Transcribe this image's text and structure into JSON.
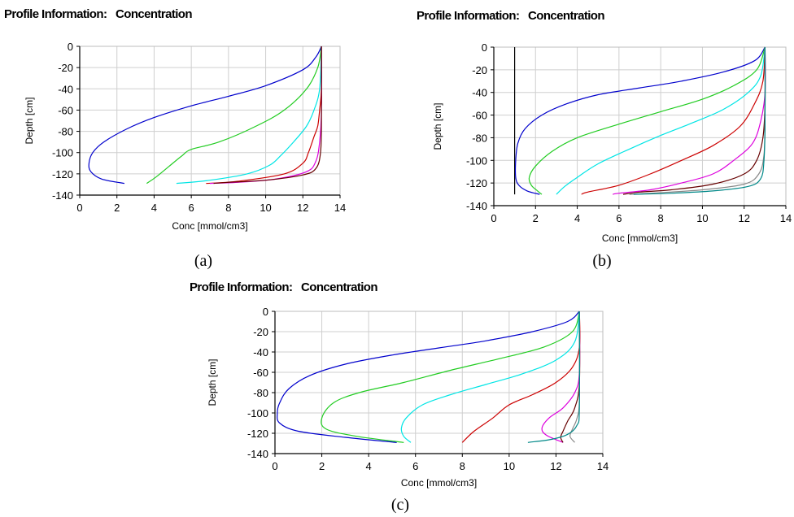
{
  "chart_data": [
    {
      "id": "a",
      "type": "line",
      "title": "Profile Information:   Concentration",
      "xlabel": "Conc [mmol/cm3]",
      "ylabel": "Depth [cm]",
      "caption": "(a)",
      "xlim": [
        0,
        14
      ],
      "ylim": [
        -140,
        0
      ],
      "xticks": [
        0,
        2,
        4,
        6,
        8,
        10,
        12,
        14
      ],
      "yticks": [
        0,
        -20,
        -40,
        -60,
        -80,
        -100,
        -120,
        -140
      ],
      "grid": true,
      "series": [
        {
          "color": "#0000cc",
          "points": [
            [
              13,
              0
            ],
            [
              12.7,
              -10
            ],
            [
              12,
              -22
            ],
            [
              10,
              -37
            ],
            [
              8,
              -47
            ],
            [
              6,
              -56
            ],
            [
              4,
              -67
            ],
            [
              2.5,
              -78
            ],
            [
              1.3,
              -90
            ],
            [
              0.7,
              -100
            ],
            [
              0.5,
              -110
            ],
            [
              0.6,
              -118
            ],
            [
              1.2,
              -125
            ],
            [
              2.4,
              -129
            ]
          ]
        },
        {
          "color": "#22cc22",
          "points": [
            [
              13,
              0
            ],
            [
              12.8,
              -20
            ],
            [
              12.2,
              -40
            ],
            [
              11,
              -60
            ],
            [
              9.5,
              -75
            ],
            [
              7.5,
              -90
            ],
            [
              6,
              -97
            ],
            [
              5.5,
              -103
            ],
            [
              4.8,
              -113
            ],
            [
              4.1,
              -123
            ],
            [
              3.6,
              -129
            ]
          ]
        },
        {
          "color": "#00e5e5",
          "points": [
            [
              13,
              0
            ],
            [
              12.9,
              -40
            ],
            [
              12.6,
              -60
            ],
            [
              12.2,
              -75
            ],
            [
              11.5,
              -90
            ],
            [
              10.8,
              -103
            ],
            [
              10.2,
              -112
            ],
            [
              9,
              -120
            ],
            [
              7,
              -126
            ],
            [
              5.2,
              -129
            ]
          ]
        },
        {
          "color": "#cc0000",
          "points": [
            [
              13,
              0
            ],
            [
              13,
              -40
            ],
            [
              12.9,
              -60
            ],
            [
              12.8,
              -75
            ],
            [
              12.6,
              -85
            ],
            [
              12.3,
              -100
            ],
            [
              12,
              -110
            ],
            [
              11,
              -120
            ],
            [
              8.5,
              -127
            ],
            [
              6.8,
              -129
            ]
          ]
        },
        {
          "color": "#dd00dd",
          "points": [
            [
              13,
              0
            ],
            [
              13,
              -60
            ],
            [
              12.9,
              -90
            ],
            [
              12.7,
              -108
            ],
            [
              12.2,
              -118
            ],
            [
              10.5,
              -125
            ],
            [
              8.5,
              -128
            ],
            [
              7,
              -129
            ]
          ]
        },
        {
          "color": "#660000",
          "points": [
            [
              13,
              0
            ],
            [
              13,
              -70
            ],
            [
              12.95,
              -100
            ],
            [
              12.7,
              -115
            ],
            [
              12,
              -121
            ],
            [
              10,
              -126
            ],
            [
              8,
              -128
            ],
            [
              7.2,
              -129
            ]
          ]
        }
      ]
    },
    {
      "id": "b",
      "type": "line",
      "title": "Profile Information:   Concentration",
      "xlabel": "Conc [mmol/cm3]",
      "ylabel": "Depth [cm]",
      "caption": "(b)",
      "xlim": [
        0,
        14
      ],
      "ylim": [
        -140,
        0
      ],
      "xticks": [
        0,
        2,
        4,
        6,
        8,
        10,
        12,
        14
      ],
      "yticks": [
        0,
        -20,
        -40,
        -60,
        -80,
        -100,
        -120,
        -140
      ],
      "grid": true,
      "series": [
        {
          "color": "#000000",
          "points": [
            [
              1,
              0
            ],
            [
              1,
              -130
            ]
          ]
        },
        {
          "color": "#0000cc",
          "points": [
            [
              13,
              0
            ],
            [
              12.5,
              -12
            ],
            [
              11,
              -22
            ],
            [
              9,
              -30
            ],
            [
              7,
              -36
            ],
            [
              5,
              -42
            ],
            [
              3.5,
              -50
            ],
            [
              2.3,
              -60
            ],
            [
              1.5,
              -72
            ],
            [
              1.15,
              -85
            ],
            [
              1.05,
              -100
            ],
            [
              1.05,
              -115
            ],
            [
              1.2,
              -122
            ],
            [
              1.6,
              -127
            ],
            [
              2.2,
              -130
            ]
          ]
        },
        {
          "color": "#22cc22",
          "points": [
            [
              13,
              0
            ],
            [
              12.6,
              -20
            ],
            [
              11.5,
              -34
            ],
            [
              10,
              -46
            ],
            [
              8,
              -57
            ],
            [
              6,
              -68
            ],
            [
              4,
              -80
            ],
            [
              2.8,
              -92
            ],
            [
              2,
              -105
            ],
            [
              1.7,
              -115
            ],
            [
              1.8,
              -122
            ],
            [
              2.1,
              -127
            ],
            [
              2.3,
              -130
            ]
          ]
        },
        {
          "color": "#00e5e5",
          "points": [
            [
              13,
              0
            ],
            [
              12.8,
              -25
            ],
            [
              12.2,
              -40
            ],
            [
              11,
              -55
            ],
            [
              9.5,
              -67
            ],
            [
              8,
              -78
            ],
            [
              6.5,
              -90
            ],
            [
              5,
              -103
            ],
            [
              4,
              -115
            ],
            [
              3.4,
              -123
            ],
            [
              3,
              -130
            ]
          ]
        },
        {
          "color": "#cc0000",
          "points": [
            [
              13,
              0
            ],
            [
              12.9,
              -30
            ],
            [
              12.5,
              -50
            ],
            [
              11.8,
              -70
            ],
            [
              10.5,
              -87
            ],
            [
              9,
              -100
            ],
            [
              7.5,
              -112
            ],
            [
              6,
              -122
            ],
            [
              4.5,
              -128
            ],
            [
              4.2,
              -130
            ]
          ]
        },
        {
          "color": "#dd00dd",
          "points": [
            [
              13,
              0
            ],
            [
              13,
              -40
            ],
            [
              12.8,
              -65
            ],
            [
              12.4,
              -85
            ],
            [
              11.5,
              -100
            ],
            [
              10.5,
              -112
            ],
            [
              9,
              -120
            ],
            [
              7.5,
              -126
            ],
            [
              6,
              -129
            ],
            [
              5.7,
              -130
            ]
          ]
        },
        {
          "color": "#660000",
          "points": [
            [
              13,
              0
            ],
            [
              13,
              -50
            ],
            [
              12.9,
              -80
            ],
            [
              12.6,
              -100
            ],
            [
              12,
              -112
            ],
            [
              10.5,
              -121
            ],
            [
              8.5,
              -126
            ],
            [
              7,
              -128
            ],
            [
              6.2,
              -130
            ]
          ]
        },
        {
          "color": "#888888",
          "points": [
            [
              13,
              0
            ],
            [
              13,
              -60
            ],
            [
              12.95,
              -95
            ],
            [
              12.7,
              -112
            ],
            [
              12,
              -121
            ],
            [
              10,
              -126
            ],
            [
              8,
              -128.5
            ],
            [
              6.5,
              -130
            ]
          ]
        },
        {
          "color": "#008888",
          "points": [
            [
              13,
              0
            ],
            [
              13,
              -70
            ],
            [
              12.95,
              -100
            ],
            [
              12.8,
              -116
            ],
            [
              12.2,
              -123
            ],
            [
              10.5,
              -127
            ],
            [
              8.5,
              -129
            ],
            [
              6.7,
              -130
            ]
          ]
        }
      ]
    },
    {
      "id": "c",
      "type": "line",
      "title": "Profile Information:   Concentration",
      "xlabel": "Conc [mmol/cm3]",
      "ylabel": "Depth [cm]",
      "caption": "(c)",
      "xlim": [
        0,
        14
      ],
      "ylim": [
        -140,
        0
      ],
      "xticks": [
        0,
        2,
        4,
        6,
        8,
        10,
        12,
        14
      ],
      "yticks": [
        0,
        -20,
        -40,
        -60,
        -80,
        -100,
        -120,
        -140
      ],
      "grid": true,
      "series": [
        {
          "color": "#0000cc",
          "points": [
            [
              13,
              0
            ],
            [
              12.5,
              -10
            ],
            [
              11,
              -20
            ],
            [
              9,
              -29
            ],
            [
              7,
              -36
            ],
            [
              5,
              -43
            ],
            [
              3,
              -52
            ],
            [
              1.5,
              -63
            ],
            [
              0.6,
              -76
            ],
            [
              0.2,
              -90
            ],
            [
              0.1,
              -100
            ],
            [
              0.2,
              -110
            ],
            [
              1,
              -118
            ],
            [
              3,
              -124
            ],
            [
              5.2,
              -129
            ]
          ]
        },
        {
          "color": "#22cc22",
          "points": [
            [
              13,
              0
            ],
            [
              12.7,
              -20
            ],
            [
              11.5,
              -35
            ],
            [
              9.5,
              -47
            ],
            [
              7.5,
              -58
            ],
            [
              5.5,
              -70
            ],
            [
              3.6,
              -80
            ],
            [
              2.5,
              -90
            ],
            [
              2,
              -105
            ],
            [
              2.2,
              -116
            ],
            [
              3.5,
              -123
            ],
            [
              5.5,
              -129
            ]
          ]
        },
        {
          "color": "#00e5e5",
          "points": [
            [
              13,
              0
            ],
            [
              12.8,
              -30
            ],
            [
              12,
              -48
            ],
            [
              10.5,
              -62
            ],
            [
              9,
              -72
            ],
            [
              7.5,
              -82
            ],
            [
              6.3,
              -92
            ],
            [
              5.6,
              -105
            ],
            [
              5.4,
              -115
            ],
            [
              5.5,
              -123
            ],
            [
              5.8,
              -129
            ]
          ]
        },
        {
          "color": "#cc0000",
          "points": [
            [
              13,
              0
            ],
            [
              13,
              -35
            ],
            [
              12.7,
              -55
            ],
            [
              12,
              -70
            ],
            [
              11,
              -82
            ],
            [
              10,
              -92
            ],
            [
              9.3,
              -105
            ],
            [
              8.5,
              -118
            ],
            [
              8,
              -129
            ]
          ]
        },
        {
          "color": "#dd00dd",
          "points": [
            [
              13,
              0
            ],
            [
              13,
              -60
            ],
            [
              12.8,
              -80
            ],
            [
              12.3,
              -95
            ],
            [
              11.7,
              -105
            ],
            [
              11.4,
              -115
            ],
            [
              11.6,
              -122
            ],
            [
              12.3,
              -129
            ]
          ]
        },
        {
          "color": "#660000",
          "points": [
            [
              13,
              0
            ],
            [
              13,
              -70
            ],
            [
              12.8,
              -95
            ],
            [
              12.5,
              -108
            ],
            [
              12.3,
              -118
            ],
            [
              12.2,
              -124
            ],
            [
              12.3,
              -129
            ]
          ]
        },
        {
          "color": "#888888",
          "points": [
            [
              13,
              0
            ],
            [
              13,
              -85
            ],
            [
              12.9,
              -105
            ],
            [
              12.7,
              -116
            ],
            [
              12.6,
              -123
            ],
            [
              12.8,
              -129
            ]
          ]
        },
        {
          "color": "#008888",
          "points": [
            [
              13,
              0
            ],
            [
              13,
              -95
            ],
            [
              12.9,
              -112
            ],
            [
              12.5,
              -121
            ],
            [
              11.8,
              -126
            ],
            [
              10.8,
              -129
            ]
          ]
        }
      ]
    }
  ]
}
